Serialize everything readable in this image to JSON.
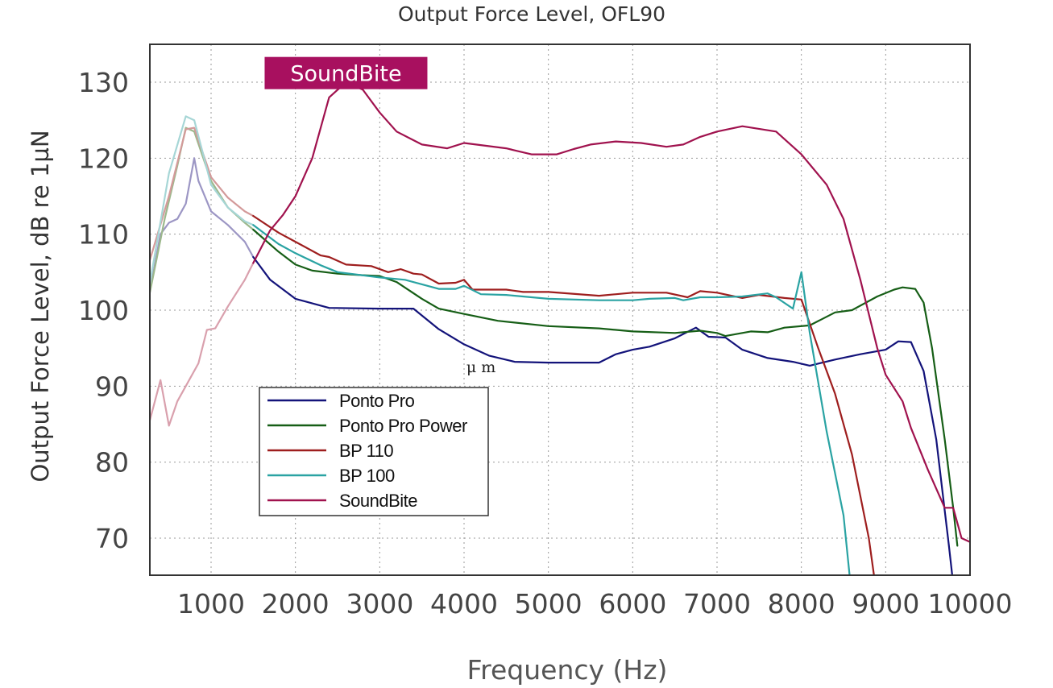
{
  "chart_data": {
    "type": "line",
    "title": "Output Force Level, OFL90",
    "xlabel": "Frequency (Hz)",
    "ylabel": "Output Force Level, dB re 1µN",
    "xlim": [
      250,
      10000
    ],
    "ylim": [
      65,
      135
    ],
    "x_ticks": [
      1000,
      2000,
      3000,
      4000,
      5000,
      6000,
      7000,
      8000,
      9000,
      10000
    ],
    "y_ticks": [
      70,
      80,
      90,
      100,
      110,
      120,
      130
    ],
    "grid": true,
    "legend_position": "bottom-left",
    "badge": {
      "text": "SoundBite",
      "color": "#a8105f",
      "x": 2600,
      "y": 131.2
    },
    "annotation": {
      "text": "μ m",
      "x": 4200,
      "y": 92.5
    },
    "series": [
      {
        "name": "Ponto Pro",
        "color": "#13137a",
        "faded_color": "#9c96c4",
        "faded_until": 1500,
        "points": [
          [
            250,
            101
          ],
          [
            400,
            110
          ],
          [
            500,
            111.5
          ],
          [
            600,
            112
          ],
          [
            700,
            114
          ],
          [
            800,
            120
          ],
          [
            850,
            117
          ],
          [
            1000,
            113
          ],
          [
            1200,
            111.2
          ],
          [
            1400,
            109
          ],
          [
            1500,
            107
          ],
          [
            1700,
            104
          ],
          [
            2000,
            101.5
          ],
          [
            2400,
            100.3
          ],
          [
            3000,
            100.2
          ],
          [
            3400,
            100.2
          ],
          [
            3700,
            97.5
          ],
          [
            4000,
            95.5
          ],
          [
            4300,
            94
          ],
          [
            4600,
            93.2
          ],
          [
            5000,
            93.1
          ],
          [
            5600,
            93.1
          ],
          [
            5800,
            94.2
          ],
          [
            6000,
            94.8
          ],
          [
            6200,
            95.2
          ],
          [
            6500,
            96.3
          ],
          [
            6750,
            97.7
          ],
          [
            6900,
            96.5
          ],
          [
            7100,
            96.4
          ],
          [
            7300,
            94.8
          ],
          [
            7600,
            93.7
          ],
          [
            7900,
            93.2
          ],
          [
            8100,
            92.7
          ],
          [
            8400,
            93.5
          ],
          [
            8700,
            94.2
          ],
          [
            9000,
            94.8
          ],
          [
            9150,
            95.9
          ],
          [
            9300,
            95.8
          ],
          [
            9450,
            92
          ],
          [
            9600,
            83
          ],
          [
            9750,
            69
          ],
          [
            9800,
            64
          ]
        ]
      },
      {
        "name": "Ponto Pro Power",
        "color": "#165e16",
        "faded_color": "#9cb88c",
        "faded_until": 1500,
        "points": [
          [
            250,
            101
          ],
          [
            450,
            112
          ],
          [
            600,
            119
          ],
          [
            700,
            124
          ],
          [
            800,
            123.5
          ],
          [
            1000,
            117
          ],
          [
            1200,
            113.5
          ],
          [
            1400,
            111.5
          ],
          [
            1500,
            110.6
          ],
          [
            1800,
            107.7
          ],
          [
            2000,
            106
          ],
          [
            2200,
            105.2
          ],
          [
            2500,
            104.8
          ],
          [
            2800,
            104.6
          ],
          [
            3000,
            104.5
          ],
          [
            3200,
            103.7
          ],
          [
            3500,
            101.5
          ],
          [
            3700,
            100.2
          ],
          [
            4000,
            99.5
          ],
          [
            4400,
            98.6
          ],
          [
            5000,
            97.9
          ],
          [
            5600,
            97.6
          ],
          [
            6000,
            97.2
          ],
          [
            6500,
            97
          ],
          [
            6800,
            97.3
          ],
          [
            7000,
            97
          ],
          [
            7100,
            96.6
          ],
          [
            7200,
            96.8
          ],
          [
            7400,
            97.2
          ],
          [
            7600,
            97.1
          ],
          [
            7800,
            97.7
          ],
          [
            8100,
            98
          ],
          [
            8400,
            99.7
          ],
          [
            8600,
            100
          ],
          [
            8900,
            101.8
          ],
          [
            9100,
            102.7
          ],
          [
            9200,
            103
          ],
          [
            9350,
            102.8
          ],
          [
            9450,
            101
          ],
          [
            9550,
            95
          ],
          [
            9700,
            83
          ],
          [
            9800,
            74
          ],
          [
            9850,
            69
          ]
        ]
      },
      {
        "name": "BP 110",
        "color": "#9e1e1e",
        "faded_color": "#d39a9a",
        "faded_until": 1500,
        "points": [
          [
            250,
            105.7
          ],
          [
            500,
            115
          ],
          [
            700,
            123.8
          ],
          [
            800,
            124
          ],
          [
            1000,
            117.5
          ],
          [
            1200,
            114.8
          ],
          [
            1400,
            113
          ],
          [
            1500,
            112.4
          ],
          [
            1800,
            110.2
          ],
          [
            2000,
            109
          ],
          [
            2300,
            107.2
          ],
          [
            2400,
            107
          ],
          [
            2600,
            106
          ],
          [
            2900,
            105.8
          ],
          [
            3100,
            105
          ],
          [
            3250,
            105.4
          ],
          [
            3400,
            104.8
          ],
          [
            3500,
            104.7
          ],
          [
            3700,
            103.5
          ],
          [
            3900,
            103.6
          ],
          [
            4000,
            104
          ],
          [
            4100,
            102.7
          ],
          [
            4500,
            102.7
          ],
          [
            4700,
            102.4
          ],
          [
            5000,
            102.4
          ],
          [
            5600,
            101.9
          ],
          [
            6000,
            102.3
          ],
          [
            6400,
            102.3
          ],
          [
            6650,
            101.7
          ],
          [
            6800,
            102.5
          ],
          [
            7000,
            102.3
          ],
          [
            7300,
            101.6
          ],
          [
            7500,
            102
          ],
          [
            7800,
            101.6
          ],
          [
            8000,
            101.4
          ],
          [
            8200,
            95
          ],
          [
            8400,
            89
          ],
          [
            8600,
            81
          ],
          [
            8800,
            70
          ],
          [
            8900,
            62
          ]
        ]
      },
      {
        "name": "BP 100",
        "color": "#2aa3a3",
        "faded_color": "#a6d6d6",
        "faded_until": 1500,
        "points": [
          [
            250,
            102
          ],
          [
            500,
            118
          ],
          [
            700,
            125.5
          ],
          [
            800,
            125
          ],
          [
            1000,
            116.5
          ],
          [
            1200,
            113.5
          ],
          [
            1400,
            111.7
          ],
          [
            1500,
            111.2
          ],
          [
            1800,
            108.7
          ],
          [
            2000,
            107.5
          ],
          [
            2300,
            105.9
          ],
          [
            2500,
            105
          ],
          [
            3000,
            104.3
          ],
          [
            3300,
            104
          ],
          [
            3500,
            103.4
          ],
          [
            3700,
            102.8
          ],
          [
            3900,
            102.8
          ],
          [
            4000,
            103.2
          ],
          [
            4200,
            102.1
          ],
          [
            4500,
            102
          ],
          [
            5000,
            101.5
          ],
          [
            5600,
            101.3
          ],
          [
            6000,
            101.3
          ],
          [
            6200,
            101.5
          ],
          [
            6500,
            101.6
          ],
          [
            6600,
            101.3
          ],
          [
            6800,
            101.7
          ],
          [
            7000,
            101.7
          ],
          [
            7300,
            101.8
          ],
          [
            7600,
            102.2
          ],
          [
            7700,
            101.7
          ],
          [
            7900,
            100.2
          ],
          [
            8000,
            105
          ],
          [
            8100,
            97
          ],
          [
            8300,
            84
          ],
          [
            8500,
            73
          ],
          [
            8600,
            62
          ]
        ]
      },
      {
        "name": "SoundBite",
        "color": "#a0124e",
        "faded_color": "#d9a0ad",
        "faded_until": 1600,
        "points": [
          [
            250,
            84.5
          ],
          [
            400,
            90.8
          ],
          [
            500,
            84.8
          ],
          [
            600,
            88
          ],
          [
            700,
            90
          ],
          [
            850,
            93
          ],
          [
            950,
            97.4
          ],
          [
            1050,
            97.6
          ],
          [
            1200,
            100.5
          ],
          [
            1400,
            104
          ],
          [
            1500,
            106.2
          ],
          [
            1700,
            110.5
          ],
          [
            1850,
            112.5
          ],
          [
            2000,
            115
          ],
          [
            2200,
            120
          ],
          [
            2400,
            128
          ],
          [
            2600,
            130
          ],
          [
            2800,
            129
          ],
          [
            3000,
            126
          ],
          [
            3200,
            123.5
          ],
          [
            3500,
            121.8
          ],
          [
            3800,
            121.3
          ],
          [
            4000,
            122
          ],
          [
            4500,
            121.3
          ],
          [
            4800,
            120.5
          ],
          [
            5100,
            120.5
          ],
          [
            5300,
            121.2
          ],
          [
            5500,
            121.8
          ],
          [
            5800,
            122.2
          ],
          [
            6100,
            122
          ],
          [
            6400,
            121.5
          ],
          [
            6600,
            121.8
          ],
          [
            6800,
            122.8
          ],
          [
            7000,
            123.5
          ],
          [
            7300,
            124.2
          ],
          [
            7700,
            123.5
          ],
          [
            8000,
            120.5
          ],
          [
            8300,
            116.5
          ],
          [
            8500,
            112
          ],
          [
            8700,
            104
          ],
          [
            8900,
            95
          ],
          [
            9000,
            91.5
          ],
          [
            9200,
            88
          ],
          [
            9300,
            84.5
          ],
          [
            9500,
            79
          ],
          [
            9700,
            74
          ],
          [
            9800,
            74
          ],
          [
            9900,
            70
          ],
          [
            10000,
            69.5
          ]
        ]
      }
    ]
  }
}
